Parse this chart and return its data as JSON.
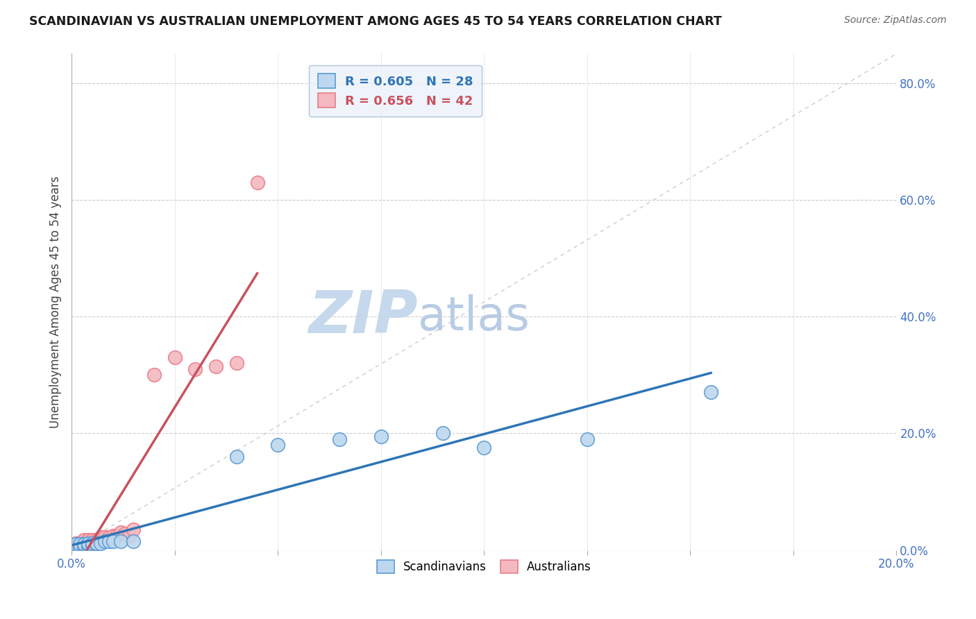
{
  "title": "SCANDINAVIAN VS AUSTRALIAN UNEMPLOYMENT AMONG AGES 45 TO 54 YEARS CORRELATION CHART",
  "source": "Source: ZipAtlas.com",
  "ylabel": "Unemployment Among Ages 45 to 54 years",
  "xlim": [
    0.0,
    0.2
  ],
  "ylim": [
    0.0,
    0.85
  ],
  "xticks": [
    0.0,
    0.025,
    0.05,
    0.075,
    0.1,
    0.125,
    0.15,
    0.175,
    0.2
  ],
  "yticks_right": [
    0.0,
    0.2,
    0.4,
    0.6,
    0.8
  ],
  "scand_color_edge": "#5B9BD5",
  "scand_color_fill": "#BDD7EE",
  "aust_color_edge": "#E87E8A",
  "aust_color_fill": "#F4B8C0",
  "scand_R": 0.605,
  "scand_N": 28,
  "aust_R": 0.656,
  "aust_N": 42,
  "scand_x": [
    0.001,
    0.001,
    0.002,
    0.002,
    0.003,
    0.003,
    0.003,
    0.004,
    0.004,
    0.004,
    0.005,
    0.005,
    0.006,
    0.006,
    0.007,
    0.008,
    0.009,
    0.01,
    0.012,
    0.015,
    0.04,
    0.05,
    0.065,
    0.075,
    0.09,
    0.1,
    0.125,
    0.155
  ],
  "scand_y": [
    0.005,
    0.01,
    0.005,
    0.01,
    0.005,
    0.008,
    0.01,
    0.007,
    0.01,
    0.012,
    0.008,
    0.012,
    0.01,
    0.012,
    0.012,
    0.015,
    0.015,
    0.015,
    0.015,
    0.015,
    0.16,
    0.18,
    0.19,
    0.195,
    0.2,
    0.175,
    0.19,
    0.27
  ],
  "aust_x": [
    0.001,
    0.001,
    0.001,
    0.001,
    0.002,
    0.002,
    0.002,
    0.002,
    0.003,
    0.003,
    0.003,
    0.003,
    0.003,
    0.004,
    0.004,
    0.004,
    0.004,
    0.005,
    0.005,
    0.005,
    0.005,
    0.006,
    0.006,
    0.006,
    0.007,
    0.007,
    0.007,
    0.008,
    0.008,
    0.009,
    0.01,
    0.011,
    0.012,
    0.013,
    0.014,
    0.015,
    0.02,
    0.025,
    0.03,
    0.035,
    0.04,
    0.045
  ],
  "aust_y": [
    0.005,
    0.007,
    0.01,
    0.012,
    0.005,
    0.008,
    0.01,
    0.013,
    0.007,
    0.01,
    0.012,
    0.015,
    0.018,
    0.008,
    0.01,
    0.015,
    0.018,
    0.01,
    0.012,
    0.015,
    0.018,
    0.012,
    0.015,
    0.018,
    0.015,
    0.018,
    0.022,
    0.018,
    0.022,
    0.022,
    0.025,
    0.025,
    0.03,
    0.028,
    0.025,
    0.035,
    0.3,
    0.33,
    0.31,
    0.315,
    0.32,
    0.63
  ],
  "ref_line_color": "#CCCCCC",
  "scand_line_color": "#2E75B6",
  "aust_line_color": "#C9515F",
  "watermark_zip_color": "#C5D8EC",
  "watermark_atlas_color": "#B8CCE4",
  "legend_box_color": "#EBF2FA",
  "legend_border_color": "#A0B8D0"
}
